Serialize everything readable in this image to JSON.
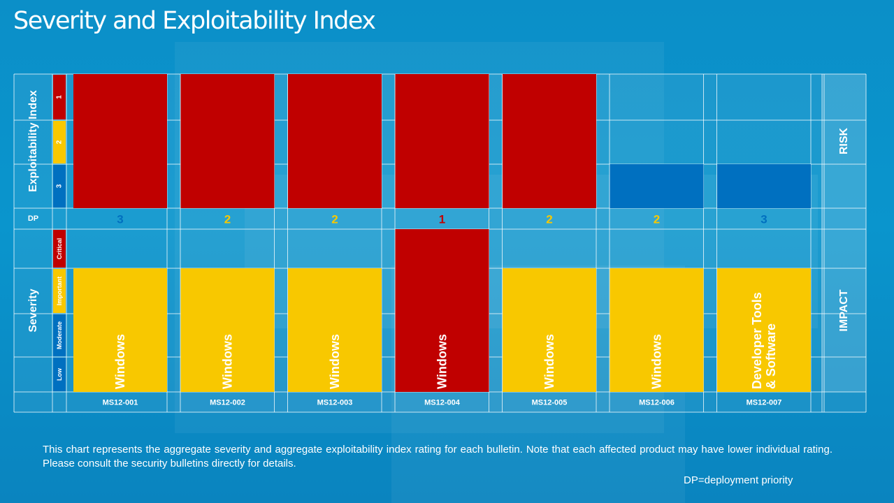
{
  "title": "Severity and Exploitability Index",
  "note": "This chart represents the aggregate severity and aggregate exploitability index rating for each bulletin. Note that each affected product may have lower individual rating. Please consult the security bulletins directly for details.",
  "dp_note": "DP=deployment priority",
  "chart_data": {
    "type": "table",
    "exploitability_axis_label": "Exploitability  Index",
    "exploitability_levels": [
      "1",
      "2",
      "3"
    ],
    "dp_label": "DP",
    "severity_axis_label": "Severity",
    "severity_levels": [
      "Critical",
      "Important",
      "Moderate",
      "Low"
    ],
    "risk_label": "RISK",
    "impact_label": "IMPACT",
    "colors": {
      "red": "#c00000",
      "yellow": "#f8c800",
      "blue": "#0070c0",
      "dp_1": "#c00000",
      "dp_2": "#f8c800",
      "dp_3": "#0070c0"
    },
    "bulletins": [
      {
        "id": "MS12-001",
        "exploitability": 1,
        "exploitability_color": "red",
        "dp": "3",
        "severity": "Important",
        "severity_color": "yellow",
        "product": "Windows"
      },
      {
        "id": "MS12-002",
        "exploitability": 1,
        "exploitability_color": "red",
        "dp": "2",
        "severity": "Important",
        "severity_color": "yellow",
        "product": "Windows"
      },
      {
        "id": "MS12-003",
        "exploitability": 1,
        "exploitability_color": "red",
        "dp": "2",
        "severity": "Important",
        "severity_color": "yellow",
        "product": "Windows"
      },
      {
        "id": "MS12-004",
        "exploitability": 1,
        "exploitability_color": "red",
        "dp": "1",
        "severity": "Critical",
        "severity_color": "red",
        "product": "Windows"
      },
      {
        "id": "MS12-005",
        "exploitability": 1,
        "exploitability_color": "red",
        "dp": "2",
        "severity": "Important",
        "severity_color": "yellow",
        "product": "Windows"
      },
      {
        "id": "MS12-006",
        "exploitability": 3,
        "exploitability_color": "blue",
        "dp": "2",
        "severity": "Important",
        "severity_color": "yellow",
        "product": "Windows"
      },
      {
        "id": "MS12-007",
        "exploitability": 3,
        "exploitability_color": "blue",
        "dp": "3",
        "severity": "Important",
        "severity_color": "yellow",
        "product": "Developer Tools & Software"
      }
    ]
  }
}
